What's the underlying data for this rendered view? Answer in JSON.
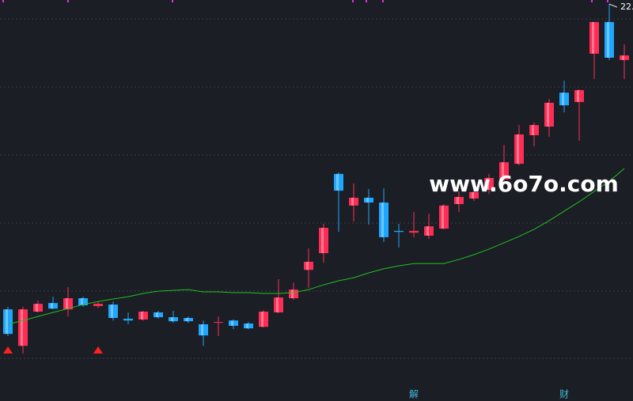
{
  "chart_data": {
    "type": "candlestick",
    "ylim": [
      6.76,
      22.6
    ],
    "up_color": "#ff2d55",
    "down_color": "#1ea7ff",
    "ma_color": "#22c022",
    "open": [
      10.38,
      8.94,
      10.29,
      10.63,
      10.38,
      10.82,
      10.51,
      10.57,
      10.01,
      9.98,
      10.26,
      10.07,
      10.04,
      9.79,
      9.85,
      9.94,
      9.82,
      9.69,
      10.26,
      10.82,
      11.94,
      12.6,
      15.73,
      14.48,
      14.79,
      14.6,
      13.48,
      13.41,
      13.29,
      13.57,
      14.54,
      14.76,
      15.1,
      15.51,
      16.13,
      17.26,
      17.6,
      18.94,
      18.57,
      20.48,
      21.73,
      20.23
    ],
    "high": [
      10.48,
      10.48,
      10.73,
      10.88,
      11.26,
      10.88,
      10.69,
      10.69,
      10.26,
      10.32,
      10.32,
      10.32,
      10.1,
      9.94,
      10.1,
      9.98,
      9.88,
      10.35,
      11.57,
      11.44,
      12.79,
      13.76,
      15.79,
      15.35,
      15.13,
      15.16,
      13.76,
      14.23,
      14.16,
      14.54,
      15.04,
      15.51,
      15.73,
      16.88,
      17.66,
      17.76,
      18.69,
      19.41,
      19.07,
      21.73,
      22.44,
      20.85
    ],
    "low": [
      9.32,
      8.63,
      10.26,
      10.38,
      10.1,
      10.48,
      10.44,
      9.94,
      9.79,
      9.94,
      10.01,
      9.85,
      9.85,
      8.94,
      9.32,
      9.6,
      9.6,
      9.66,
      10.23,
      10.76,
      11.23,
      12.23,
      13.44,
      13.85,
      13.73,
      13.04,
      12.82,
      13.23,
      13.16,
      13.54,
      14.23,
      14.66,
      14.94,
      15.41,
      16.07,
      16.82,
      17.19,
      18.16,
      17.04,
      19.48,
      20.23,
      19.48
    ],
    "close": [
      9.41,
      10.38,
      10.6,
      10.41,
      10.82,
      10.54,
      10.6,
      10.04,
      9.94,
      10.29,
      10.07,
      9.91,
      9.91,
      9.35,
      9.88,
      9.73,
      9.63,
      10.29,
      10.85,
      11.16,
      12.26,
      13.6,
      15.07,
      14.79,
      14.6,
      13.23,
      13.44,
      13.48,
      13.66,
      14.48,
      14.82,
      15.01,
      15.57,
      16.19,
      17.29,
      17.66,
      18.54,
      18.44,
      19.04,
      21.73,
      20.32,
      20.41
    ],
    "ma": [
      9.79,
      9.94,
      10.1,
      10.26,
      10.41,
      10.57,
      10.69,
      10.79,
      10.88,
      11.01,
      11.1,
      11.13,
      11.16,
      11.07,
      11.07,
      11.04,
      11.04,
      11.01,
      11.01,
      11.04,
      11.16,
      11.35,
      11.51,
      11.63,
      11.82,
      11.98,
      12.1,
      12.19,
      12.19,
      12.19,
      12.35,
      12.54,
      12.76,
      13.01,
      13.26,
      13.54,
      13.88,
      14.26,
      14.63,
      15.04,
      15.44,
      15.94
    ],
    "signals": [
      0,
      6
    ],
    "high_label": "22.",
    "events": [
      {
        "index": 27,
        "label": "解"
      },
      {
        "index": 37,
        "label": "财"
      }
    ],
    "watermark": "www.6o7o.com"
  }
}
